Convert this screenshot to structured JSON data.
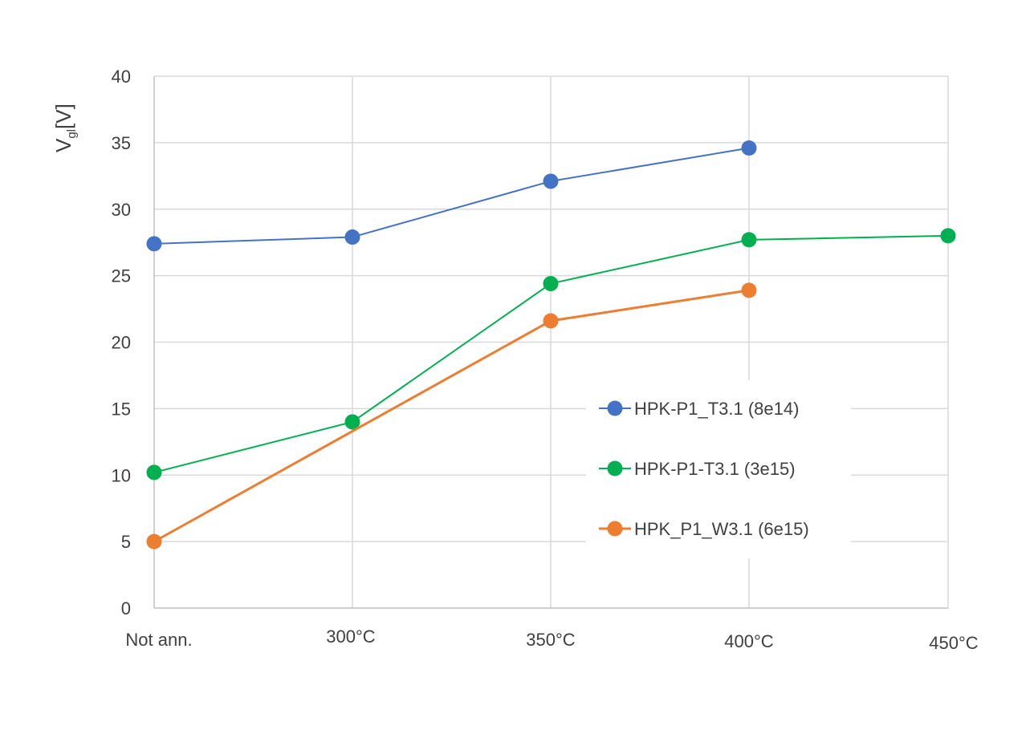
{
  "chart_data": {
    "type": "line",
    "title": "",
    "xlabel": "",
    "ylabel": "V",
    "ylabel_sub": "gl",
    "ylabel_unit": "[V]",
    "categories": [
      "Not ann.",
      "300°C",
      "350°C",
      "400°C",
      "450°C"
    ],
    "ylim": [
      0,
      40
    ],
    "yticks": [
      0,
      5,
      10,
      15,
      20,
      25,
      30,
      35,
      40
    ],
    "grid": true,
    "legend_position": "center-right",
    "series": [
      {
        "name": "HPK-P1_T3.1 (8e14)",
        "color": "#4472C4",
        "values": [
          27.4,
          27.9,
          32.1,
          34.6,
          null
        ]
      },
      {
        "name": "HPK-P1-T3.1 (3e15)",
        "color": "#00B050",
        "values": [
          10.2,
          14.0,
          24.4,
          27.7,
          28.0
        ]
      },
      {
        "name": "HPK_P1_W3.1 (6e15)",
        "color": "#ED7D31",
        "values": [
          5.0,
          null,
          21.6,
          23.9,
          null
        ]
      }
    ]
  }
}
